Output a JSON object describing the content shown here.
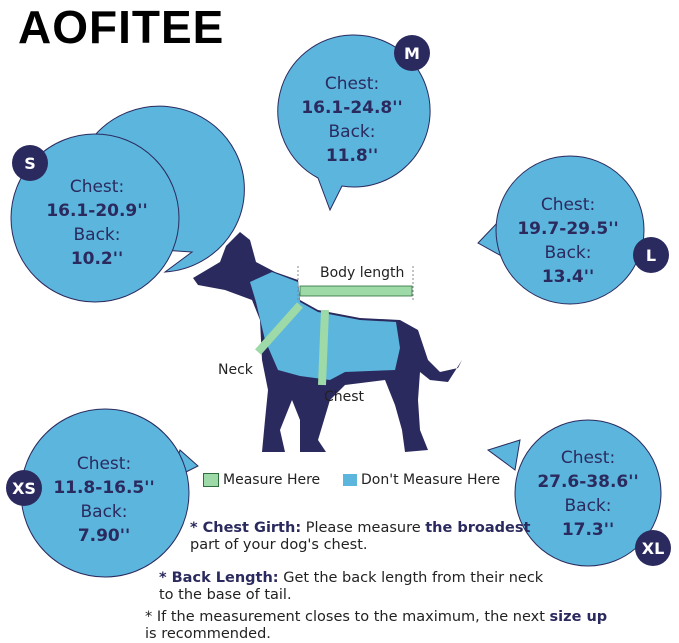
{
  "brand": {
    "logo": "AOFITEE"
  },
  "colors": {
    "bubble": "#5bb5dd",
    "navy": "#2b2a5e",
    "tape": "#9ed9a8"
  },
  "sizes": [
    {
      "size": "M",
      "chest_label": "Chest:",
      "chest": "16.1-24.8''",
      "back_label": "Back:",
      "back": "11.8''"
    },
    {
      "size": "S",
      "chest_label": "Chest:",
      "chest": "16.1-20.9''",
      "back_label": "Back:",
      "back": "10.2''"
    },
    {
      "size": "L",
      "chest_label": "Chest:",
      "chest": "19.7-29.5''",
      "back_label": "Back:",
      "back": "13.4''"
    },
    {
      "size": "XS",
      "chest_label": "Chest:",
      "chest": "11.8-16.5''",
      "back_label": "Back:",
      "back": "7.90''"
    },
    {
      "size": "XL",
      "chest_label": "Chest:",
      "chest": "27.6-38.6''",
      "back_label": "Back:",
      "back": "17.3''"
    }
  ],
  "diagram": {
    "body_length": "Body length",
    "neck": "Neck",
    "chest": "Chest"
  },
  "legend": {
    "measure": "Measure Here",
    "dont_measure": "Don't Measure Here"
  },
  "notes": {
    "chest_title": "* Chest Girth:",
    "chest_a": "Please measure",
    "chest_b": "the broadest",
    "chest_c": "part of your dog's chest.",
    "back_title": "* Back Length:",
    "back_a": "Get the back length from their neck",
    "back_b": "to the base of tail.",
    "size_a": "* If the measurement closes to the maximum, the next",
    "size_b": "size up",
    "size_c": "is recommended."
  }
}
